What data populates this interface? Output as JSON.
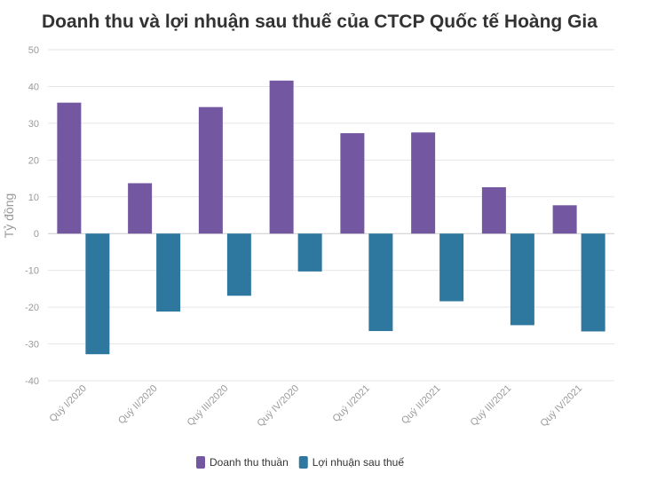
{
  "chart_data": {
    "type": "bar",
    "title": "Doanh thu và lợi nhuận sau thuế của CTCP Quốc tế Hoàng Gia",
    "xlabel": "",
    "ylabel": "Tỷ đồng",
    "ylim": [
      -40,
      50
    ],
    "yticks": [
      50,
      40,
      30,
      20,
      10,
      0,
      -10,
      -20,
      -30,
      -40
    ],
    "grid": true,
    "legend_position": "bottom-center",
    "categories": [
      "Quý I/2020",
      "Quý II/2020",
      "Quý III/2020",
      "Quý IV/2020",
      "Quý I/2021",
      "Quý II/2021",
      "Quý III/2021",
      "Quý IV/2021"
    ],
    "series": [
      {
        "name": "Doanh thu thuần",
        "color": "#7357a0",
        "values": [
          35.6,
          13.7,
          34.4,
          41.6,
          27.3,
          27.5,
          12.6,
          7.7
        ]
      },
      {
        "name": "Lợi nhuận sau thuế",
        "color": "#2e78a0",
        "values": [
          -32.8,
          -21.2,
          -16.9,
          -10.3,
          -26.5,
          -18.4,
          -24.9,
          -26.6
        ]
      }
    ]
  }
}
